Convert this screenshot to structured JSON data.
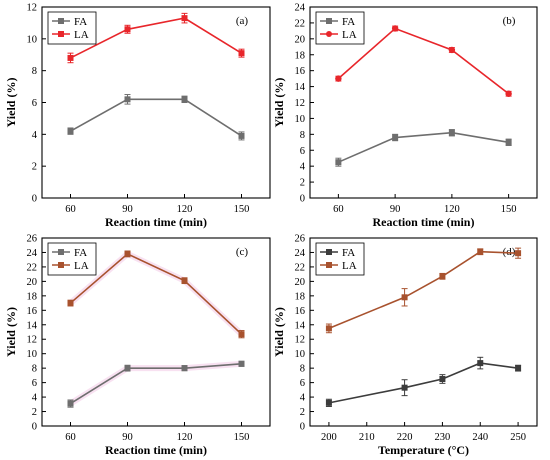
{
  "chart_data": [
    {
      "panel_label": "(a)",
      "type": "line",
      "xlabel": "Reaction time (min)",
      "ylabel": "Yield (%)",
      "x": [
        60,
        90,
        120,
        150
      ],
      "xlim": [
        45,
        165
      ],
      "ylim": [
        0,
        12
      ],
      "xticks": [
        60,
        90,
        120,
        150
      ],
      "yticks": [
        0,
        2,
        4,
        6,
        8,
        10,
        12
      ],
      "legend_position": "top-left",
      "series": [
        {
          "name": "FA",
          "color": "#6e6e6e",
          "marker": "square",
          "values": [
            4.2,
            6.2,
            6.2,
            3.9
          ],
          "errors": [
            0.2,
            0.3,
            0.2,
            0.25
          ]
        },
        {
          "name": "LA",
          "color": "#e8262b",
          "marker": "square",
          "values": [
            8.8,
            10.6,
            11.3,
            9.1
          ],
          "errors": [
            0.3,
            0.25,
            0.3,
            0.25
          ]
        }
      ]
    },
    {
      "panel_label": "(b)",
      "type": "line",
      "xlabel": "Reaction time (min)",
      "ylabel": "Yield (%)",
      "x": [
        60,
        90,
        120,
        150
      ],
      "xlim": [
        45,
        165
      ],
      "ylim": [
        0,
        24
      ],
      "xticks": [
        60,
        90,
        120,
        150
      ],
      "yticks": [
        0,
        2,
        4,
        6,
        8,
        10,
        12,
        14,
        16,
        18,
        20,
        22,
        24
      ],
      "legend_position": "top-left",
      "series": [
        {
          "name": "FA",
          "color": "#6e6e6e",
          "marker": "square",
          "values": [
            4.5,
            7.6,
            8.2,
            7.0
          ],
          "errors": [
            0.5,
            0.4,
            0.4,
            0.4
          ]
        },
        {
          "name": "LA",
          "color": "#e8262b",
          "marker": "circle",
          "values": [
            15.0,
            21.3,
            18.6,
            13.1
          ],
          "errors": [
            0.3,
            0.3,
            0.3,
            0.3
          ]
        }
      ]
    },
    {
      "panel_label": "(c)",
      "type": "line",
      "xlabel": "Reaction time (min)",
      "ylabel": "Yield (%)",
      "x": [
        60,
        90,
        120,
        150
      ],
      "xlim": [
        45,
        165
      ],
      "ylim": [
        0,
        26
      ],
      "xticks": [
        60,
        90,
        120,
        150
      ],
      "yticks": [
        0,
        2,
        4,
        6,
        8,
        10,
        12,
        14,
        16,
        18,
        20,
        22,
        24,
        26
      ],
      "legend_position": "top-left",
      "series": [
        {
          "name": "FA",
          "color": "#6e6e6e",
          "marker": "square",
          "values": [
            3.1,
            8.0,
            8.0,
            8.6
          ],
          "errors": [
            0.5,
            0.4,
            0.35,
            0.35
          ]
        },
        {
          "name": "LA",
          "color": "#a8522e",
          "marker": "square",
          "values": [
            17.0,
            23.8,
            20.1,
            12.7
          ],
          "errors": [
            0.4,
            0.4,
            0.4,
            0.5
          ]
        }
      ]
    },
    {
      "panel_label": "(d)",
      "type": "line",
      "xlabel": "Temperature (°C)",
      "ylabel": "Yield (%)",
      "x": [
        200,
        220,
        230,
        240,
        250
      ],
      "xlim": [
        195,
        255
      ],
      "ylim": [
        0,
        26
      ],
      "xticks": [
        200,
        210,
        220,
        230,
        240,
        250
      ],
      "yticks": [
        0,
        2,
        4,
        6,
        8,
        10,
        12,
        14,
        16,
        18,
        20,
        22,
        24,
        26
      ],
      "legend_position": "top-left",
      "series": [
        {
          "name": "FA",
          "color": "#3c3c3c",
          "marker": "square",
          "values": [
            3.2,
            5.3,
            6.5,
            8.7,
            8.0
          ],
          "errors": [
            0.5,
            1.1,
            0.6,
            0.8,
            0.4
          ]
        },
        {
          "name": "LA",
          "color": "#a8522e",
          "marker": "square",
          "values": [
            13.5,
            17.8,
            20.7,
            24.1,
            23.9
          ],
          "errors": [
            0.6,
            1.2,
            0.4,
            0.4,
            0.7
          ]
        }
      ]
    }
  ]
}
